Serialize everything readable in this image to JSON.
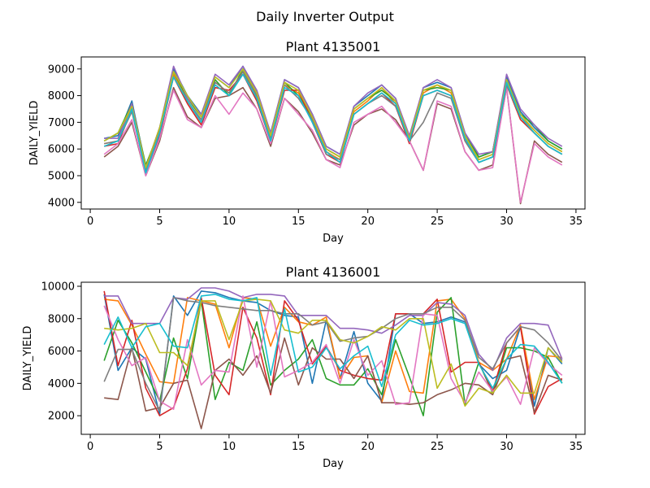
{
  "figure": {
    "suptitle": "Daily Inverter Output"
  },
  "colors": [
    "#1f77b4",
    "#ff7f0e",
    "#2ca02c",
    "#d62728",
    "#9467bd",
    "#8c564b",
    "#e377c2",
    "#7f7f7f",
    "#bcbd22",
    "#17becf"
  ],
  "chart_data": [
    {
      "type": "line",
      "title": "Plant 4135001",
      "xlabel": "Day",
      "ylabel": "DAILY_YIELD",
      "xlim": [
        -0.65,
        35.65
      ],
      "ylim": [
        3750,
        9450
      ],
      "xticks": [
        0,
        5,
        10,
        15,
        20,
        25,
        30,
        35
      ],
      "yticks": [
        4000,
        5000,
        6000,
        7000,
        8000,
        9000
      ],
      "x": [
        1,
        2,
        3,
        4,
        5,
        6,
        7,
        8,
        9,
        10,
        11,
        12,
        13,
        14,
        15,
        16,
        17,
        18,
        19,
        20,
        21,
        22,
        23,
        24,
        25,
        26,
        27,
        28,
        29,
        30,
        31,
        32,
        33,
        34
      ],
      "series": [
        {
          "values": [
            6400,
            6500,
            7800,
            5300,
            6800,
            9000,
            8000,
            7300,
            8700,
            8300,
            9100,
            8100,
            6600,
            8600,
            8300,
            7300,
            6100,
            5800,
            7600,
            8000,
            8400,
            7900,
            6400,
            8300,
            8500,
            8300,
            6600,
            5700,
            5900,
            8700,
            7400,
            6800,
            6300,
            6000
          ]
        },
        {
          "values": [
            6200,
            6300,
            7600,
            5200,
            6600,
            8800,
            7800,
            7000,
            8500,
            8100,
            8900,
            7900,
            6400,
            8400,
            8100,
            7100,
            5900,
            5600,
            7400,
            7800,
            8300,
            7700,
            6300,
            8100,
            8400,
            8100,
            6400,
            5600,
            5800,
            8500,
            7200,
            6700,
            6200,
            5900
          ]
        },
        {
          "values": [
            6300,
            6600,
            7700,
            5400,
            6700,
            8900,
            7900,
            7200,
            8600,
            8000,
            9000,
            8000,
            6500,
            8500,
            8000,
            7200,
            6000,
            5700,
            7500,
            7900,
            8200,
            7800,
            6400,
            8200,
            8300,
            8200,
            6500,
            5700,
            5900,
            8600,
            7300,
            6900,
            6300,
            6000
          ]
        },
        {
          "values": [
            6100,
            6200,
            7500,
            5100,
            6500,
            8700,
            7700,
            6900,
            8300,
            8200,
            8800,
            7800,
            6300,
            8200,
            8200,
            7000,
            5800,
            5500,
            7300,
            7700,
            8100,
            7600,
            6200,
            8000,
            8200,
            8000,
            6300,
            5500,
            5700,
            8400,
            7100,
            6600,
            6100,
            5800
          ]
        },
        {
          "values": [
            6400,
            6400,
            7700,
            5300,
            6800,
            9100,
            7900,
            7300,
            8800,
            8400,
            9100,
            8200,
            6600,
            8600,
            8300,
            7300,
            6100,
            5800,
            7600,
            8100,
            8400,
            7900,
            6500,
            8300,
            8600,
            8300,
            6600,
            5800,
            5900,
            8800,
            7500,
            6900,
            6400,
            6100
          ]
        },
        {
          "values": [
            5700,
            6100,
            7000,
            5000,
            6300,
            8300,
            7200,
            6800,
            7900,
            8000,
            8300,
            7500,
            6100,
            7900,
            7400,
            6600,
            5600,
            5400,
            6900,
            7300,
            7500,
            7100,
            6300,
            5200,
            7700,
            7500,
            5900,
            5200,
            5400,
            8300,
            3950,
            6300,
            5800,
            5500
          ]
        },
        {
          "values": [
            5800,
            6200,
            7100,
            5000,
            6400,
            8200,
            7100,
            6800,
            8000,
            7300,
            8100,
            7500,
            6200,
            7900,
            7300,
            6700,
            5600,
            5300,
            7000,
            7300,
            7600,
            7000,
            6300,
            5200,
            7800,
            7600,
            5900,
            5200,
            5300,
            8300,
            4000,
            6200,
            5700,
            5400
          ]
        },
        {
          "values": [
            6200,
            6300,
            7400,
            5200,
            6700,
            8700,
            7800,
            7100,
            8500,
            8100,
            8900,
            8000,
            6400,
            8400,
            7900,
            7100,
            5800,
            5600,
            7300,
            7700,
            8000,
            7600,
            6300,
            7000,
            8100,
            7900,
            6300,
            5500,
            5700,
            8400,
            7200,
            6600,
            6100,
            5800
          ]
        },
        {
          "values": [
            6300,
            6600,
            7600,
            5300,
            6800,
            8900,
            8000,
            7200,
            8700,
            8300,
            9000,
            8100,
            6500,
            8500,
            8200,
            7200,
            6000,
            5700,
            7500,
            7900,
            8300,
            7800,
            6400,
            8200,
            8400,
            8200,
            6500,
            5600,
            5800,
            8600,
            7300,
            6700,
            6200,
            5900
          ]
        },
        {
          "values": [
            6100,
            6300,
            7500,
            5100,
            6600,
            8700,
            7800,
            7000,
            8400,
            8000,
            8800,
            7900,
            6300,
            8300,
            8000,
            7000,
            5900,
            5500,
            7300,
            7700,
            8100,
            7700,
            6300,
            8000,
            8200,
            8000,
            6400,
            5500,
            5700,
            8500,
            7200,
            6600,
            6100,
            5800
          ]
        }
      ]
    },
    {
      "type": "line",
      "title": "Plant 4136001",
      "xlabel": "Day",
      "ylabel": "DAILY_YIELD",
      "xlim": [
        -0.65,
        35.65
      ],
      "ylim": [
        850,
        10250
      ],
      "xticks": [
        0,
        5,
        10,
        15,
        20,
        25,
        30,
        35
      ],
      "yticks": [
        2000,
        4000,
        6000,
        8000,
        10000
      ],
      "x": [
        1,
        2,
        3,
        4,
        5,
        6,
        7,
        8,
        9,
        10,
        11,
        12,
        13,
        14,
        15,
        16,
        17,
        18,
        19,
        20,
        21,
        22,
        23,
        24,
        25,
        26,
        27,
        28,
        29,
        30,
        31,
        32,
        33,
        34
      ],
      "series": [
        {
          "values": [
            9500,
            4800,
            6200,
            5500,
            2100,
            9400,
            8200,
            9700,
            9600,
            9300,
            9100,
            9000,
            8500,
            8200,
            8100,
            4000,
            7900,
            4300,
            7200,
            4000,
            2900,
            8300,
            8300,
            7700,
            7800,
            8100,
            7800,
            5200,
            4300,
            4800,
            7500,
            2600,
            6200,
            5200
          ]
        },
        {
          "values": [
            9200,
            9100,
            7600,
            5800,
            4100,
            4000,
            9300,
            9100,
            8900,
            6200,
            9300,
            9200,
            6300,
            8700,
            7800,
            7600,
            8100,
            4300,
            5600,
            5700,
            2800,
            6000,
            3500,
            3400,
            9100,
            9200,
            8000,
            5300,
            4800,
            5500,
            7600,
            3000,
            5700,
            5600
          ]
        },
        {
          "values": [
            5400,
            7900,
            6500,
            4700,
            2900,
            6800,
            4300,
            9100,
            3000,
            5300,
            4800,
            7800,
            3900,
            4800,
            5500,
            6700,
            4300,
            3900,
            3900,
            4900,
            3300,
            6700,
            4400,
            2000,
            8400,
            9300,
            2700,
            5300,
            3400,
            6200,
            6200,
            6000,
            5600,
            4000
          ]
        },
        {
          "values": [
            9700,
            5100,
            7900,
            3700,
            2000,
            2500,
            4900,
            9300,
            4500,
            3300,
            8700,
            6800,
            3300,
            9100,
            7900,
            5200,
            6300,
            4800,
            4500,
            4300,
            4200,
            8300,
            8300,
            8300,
            9200,
            4700,
            5300,
            5300,
            3500,
            6500,
            7500,
            2100,
            3800,
            4300
          ]
        },
        {
          "values": [
            9400,
            9400,
            7700,
            7700,
            7700,
            9300,
            9200,
            9900,
            9900,
            9700,
            9300,
            9500,
            9500,
            9400,
            8200,
            8200,
            8200,
            7400,
            7400,
            7300,
            7100,
            7600,
            8200,
            8200,
            9000,
            8900,
            8200,
            5800,
            4800,
            6800,
            7700,
            7700,
            7600,
            5500
          ]
        },
        {
          "values": [
            3100,
            3000,
            6200,
            2300,
            2500,
            4000,
            4200,
            1200,
            4800,
            5500,
            4500,
            5700,
            3400,
            6800,
            3900,
            6200,
            5500,
            5500,
            4300,
            5700,
            2800,
            2800,
            2700,
            2800,
            3300,
            3600,
            4000,
            3900,
            3300,
            5500,
            5700,
            2200,
            4500,
            4200
          ]
        },
        {
          "values": [
            8800,
            6700,
            5100,
            5600,
            2900,
            2400,
            6700,
            3900,
            4800,
            4700,
            9400,
            5000,
            9100,
            4400,
            4800,
            5300,
            6400,
            4000,
            6700,
            4500,
            5400,
            2700,
            2800,
            8300,
            8200,
            4300,
            2800,
            4700,
            3500,
            4400,
            2700,
            6200,
            5200,
            4500
          ]
        },
        {
          "values": [
            4100,
            6100,
            6100,
            4000,
            2300,
            9300,
            9100,
            9000,
            8800,
            8700,
            8600,
            8500,
            8500,
            8300,
            8300,
            7600,
            7800,
            6600,
            6800,
            6900,
            7400,
            8000,
            8300,
            8300,
            8700,
            8700,
            7900,
            5600,
            4900,
            6500,
            7500,
            7300,
            6500,
            5400
          ]
        },
        {
          "values": [
            7400,
            7300,
            7400,
            7700,
            5900,
            5900,
            5100,
            9100,
            9100,
            6700,
            9100,
            9200,
            9100,
            7300,
            7100,
            7900,
            7900,
            6700,
            6500,
            6900,
            7500,
            7300,
            8000,
            8000,
            3700,
            5200,
            2600,
            3700,
            3400,
            4500,
            3400,
            3400,
            6200,
            5300
          ]
        },
        {
          "values": [
            6400,
            8100,
            6200,
            7500,
            7700,
            6300,
            6200,
            9400,
            9500,
            9200,
            9100,
            9300,
            4500,
            8600,
            4700,
            5000,
            6200,
            4900,
            5700,
            6300,
            3800,
            7000,
            7900,
            7600,
            7700,
            8000,
            7700,
            5200,
            3700,
            5500,
            6400,
            6300,
            5300,
            4000
          ]
        }
      ]
    }
  ]
}
